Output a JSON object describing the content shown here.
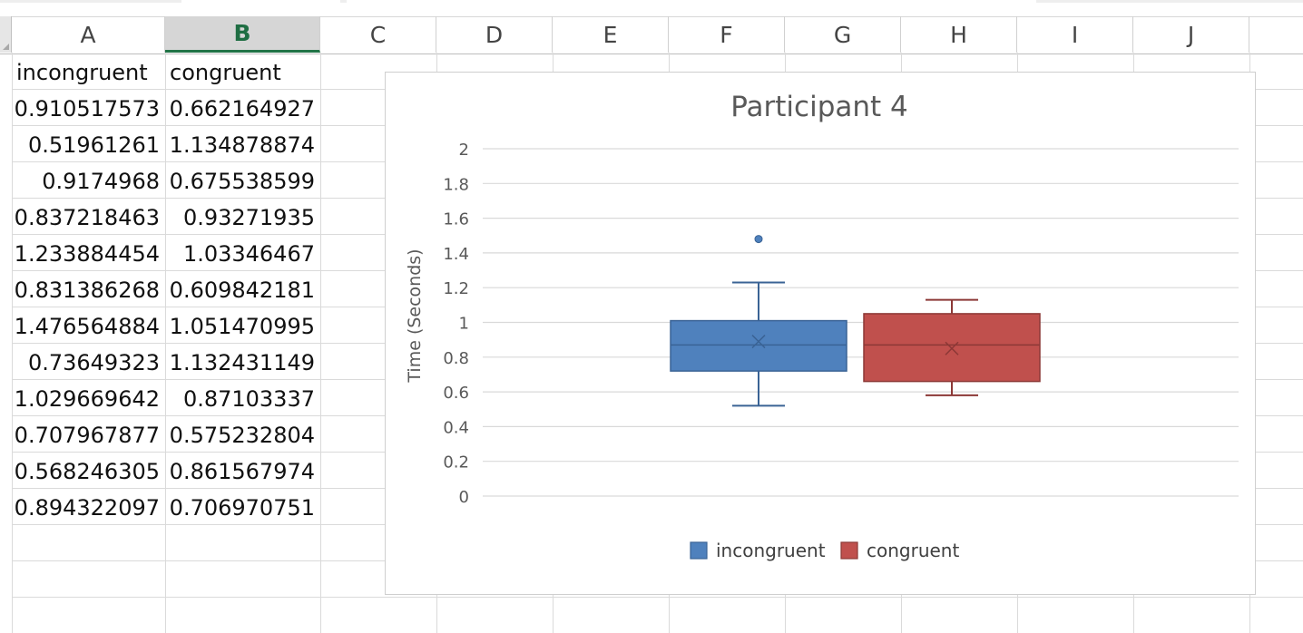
{
  "spreadsheet": {
    "column_headers": [
      "A",
      "B",
      "C",
      "D",
      "E",
      "F",
      "G",
      "H",
      "I",
      "J"
    ],
    "selected_column": "B",
    "header_row": [
      "incongruent",
      "congruent"
    ],
    "rows": [
      [
        "0.910517573",
        "0.662164927"
      ],
      [
        "0.51961261",
        "1.134878874"
      ],
      [
        "0.9174968",
        "0.675538599"
      ],
      [
        "0.837218463",
        "0.93271935"
      ],
      [
        "1.233884454",
        "1.03346467"
      ],
      [
        "0.831386268",
        "0.609842181"
      ],
      [
        "1.476564884",
        "1.051470995"
      ],
      [
        "0.73649323",
        "1.132431149"
      ],
      [
        "1.029669642",
        "0.87103337"
      ],
      [
        "0.707967877",
        "0.575232804"
      ],
      [
        "0.568246305",
        "0.861567974"
      ],
      [
        "0.894322097",
        "0.706970751"
      ]
    ]
  },
  "chart_data": {
    "type": "box",
    "title": "Participant 4",
    "ylabel": "Time (Seconds)",
    "xlabel": "",
    "ylim": [
      0,
      2
    ],
    "yticks": [
      "0",
      "0.2",
      "0.4",
      "0.6",
      "0.8",
      "1",
      "1.2",
      "1.4",
      "1.6",
      "1.8",
      "2"
    ],
    "grid": true,
    "legend_position": "bottom",
    "series": [
      {
        "name": "incongruent",
        "color": "#4f81bd",
        "border": "#3a6395",
        "whisker_low": 0.52,
        "q1": 0.72,
        "median": 0.87,
        "q3": 1.01,
        "whisker_high": 1.23,
        "mean": 0.89,
        "outliers": [
          1.48
        ]
      },
      {
        "name": "congruent",
        "color": "#c0504d",
        "border": "#8c3836",
        "whisker_low": 0.58,
        "q1": 0.66,
        "median": 0.87,
        "q3": 1.05,
        "whisker_high": 1.13,
        "mean": 0.85,
        "outliers": []
      }
    ]
  }
}
